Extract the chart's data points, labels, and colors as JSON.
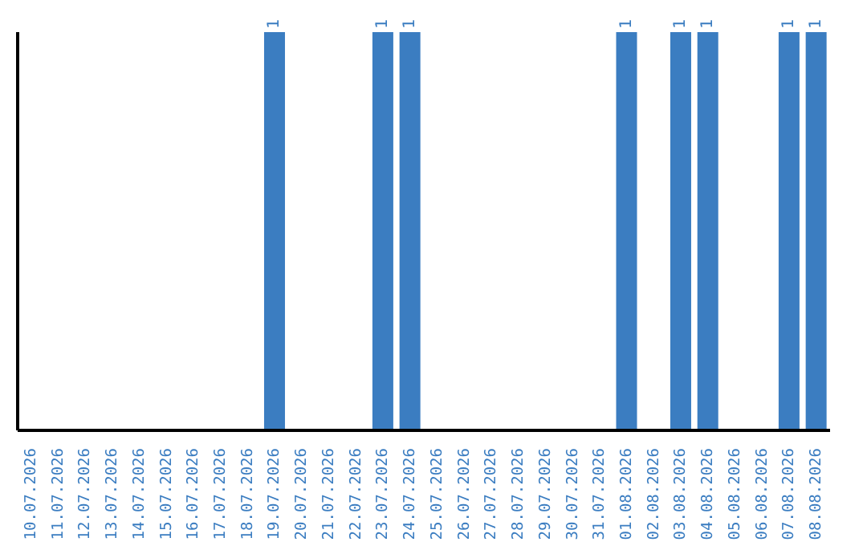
{
  "chart_data": {
    "type": "bar",
    "categories": [
      "10.07.2026",
      "11.07.2026",
      "12.07.2026",
      "13.07.2026",
      "14.07.2026",
      "15.07.2026",
      "16.07.2026",
      "17.07.2026",
      "18.07.2026",
      "19.07.2026",
      "20.07.2026",
      "21.07.2026",
      "22.07.2026",
      "23.07.2026",
      "24.07.2026",
      "25.07.2026",
      "26.07.2026",
      "27.07.2026",
      "28.07.2026",
      "29.07.2026",
      "30.07.2026",
      "31.07.2026",
      "01.08.2026",
      "02.08.2026",
      "03.08.2026",
      "04.08.2026",
      "05.08.2026",
      "06.08.2026",
      "07.08.2026",
      "08.08.2026"
    ],
    "values": [
      0,
      0,
      0,
      0,
      0,
      0,
      0,
      0,
      0,
      1,
      0,
      0,
      0,
      1,
      1,
      0,
      0,
      0,
      0,
      0,
      0,
      0,
      1,
      0,
      1,
      1,
      0,
      0,
      1,
      1
    ],
    "value_labels": [
      null,
      null,
      null,
      null,
      null,
      null,
      null,
      null,
      null,
      "1",
      null,
      null,
      null,
      "1",
      "1",
      null,
      null,
      null,
      null,
      null,
      null,
      null,
      "1",
      null,
      "1",
      "1",
      null,
      null,
      "1",
      "1"
    ],
    "color": "#3b7dc1",
    "grid": false
  }
}
